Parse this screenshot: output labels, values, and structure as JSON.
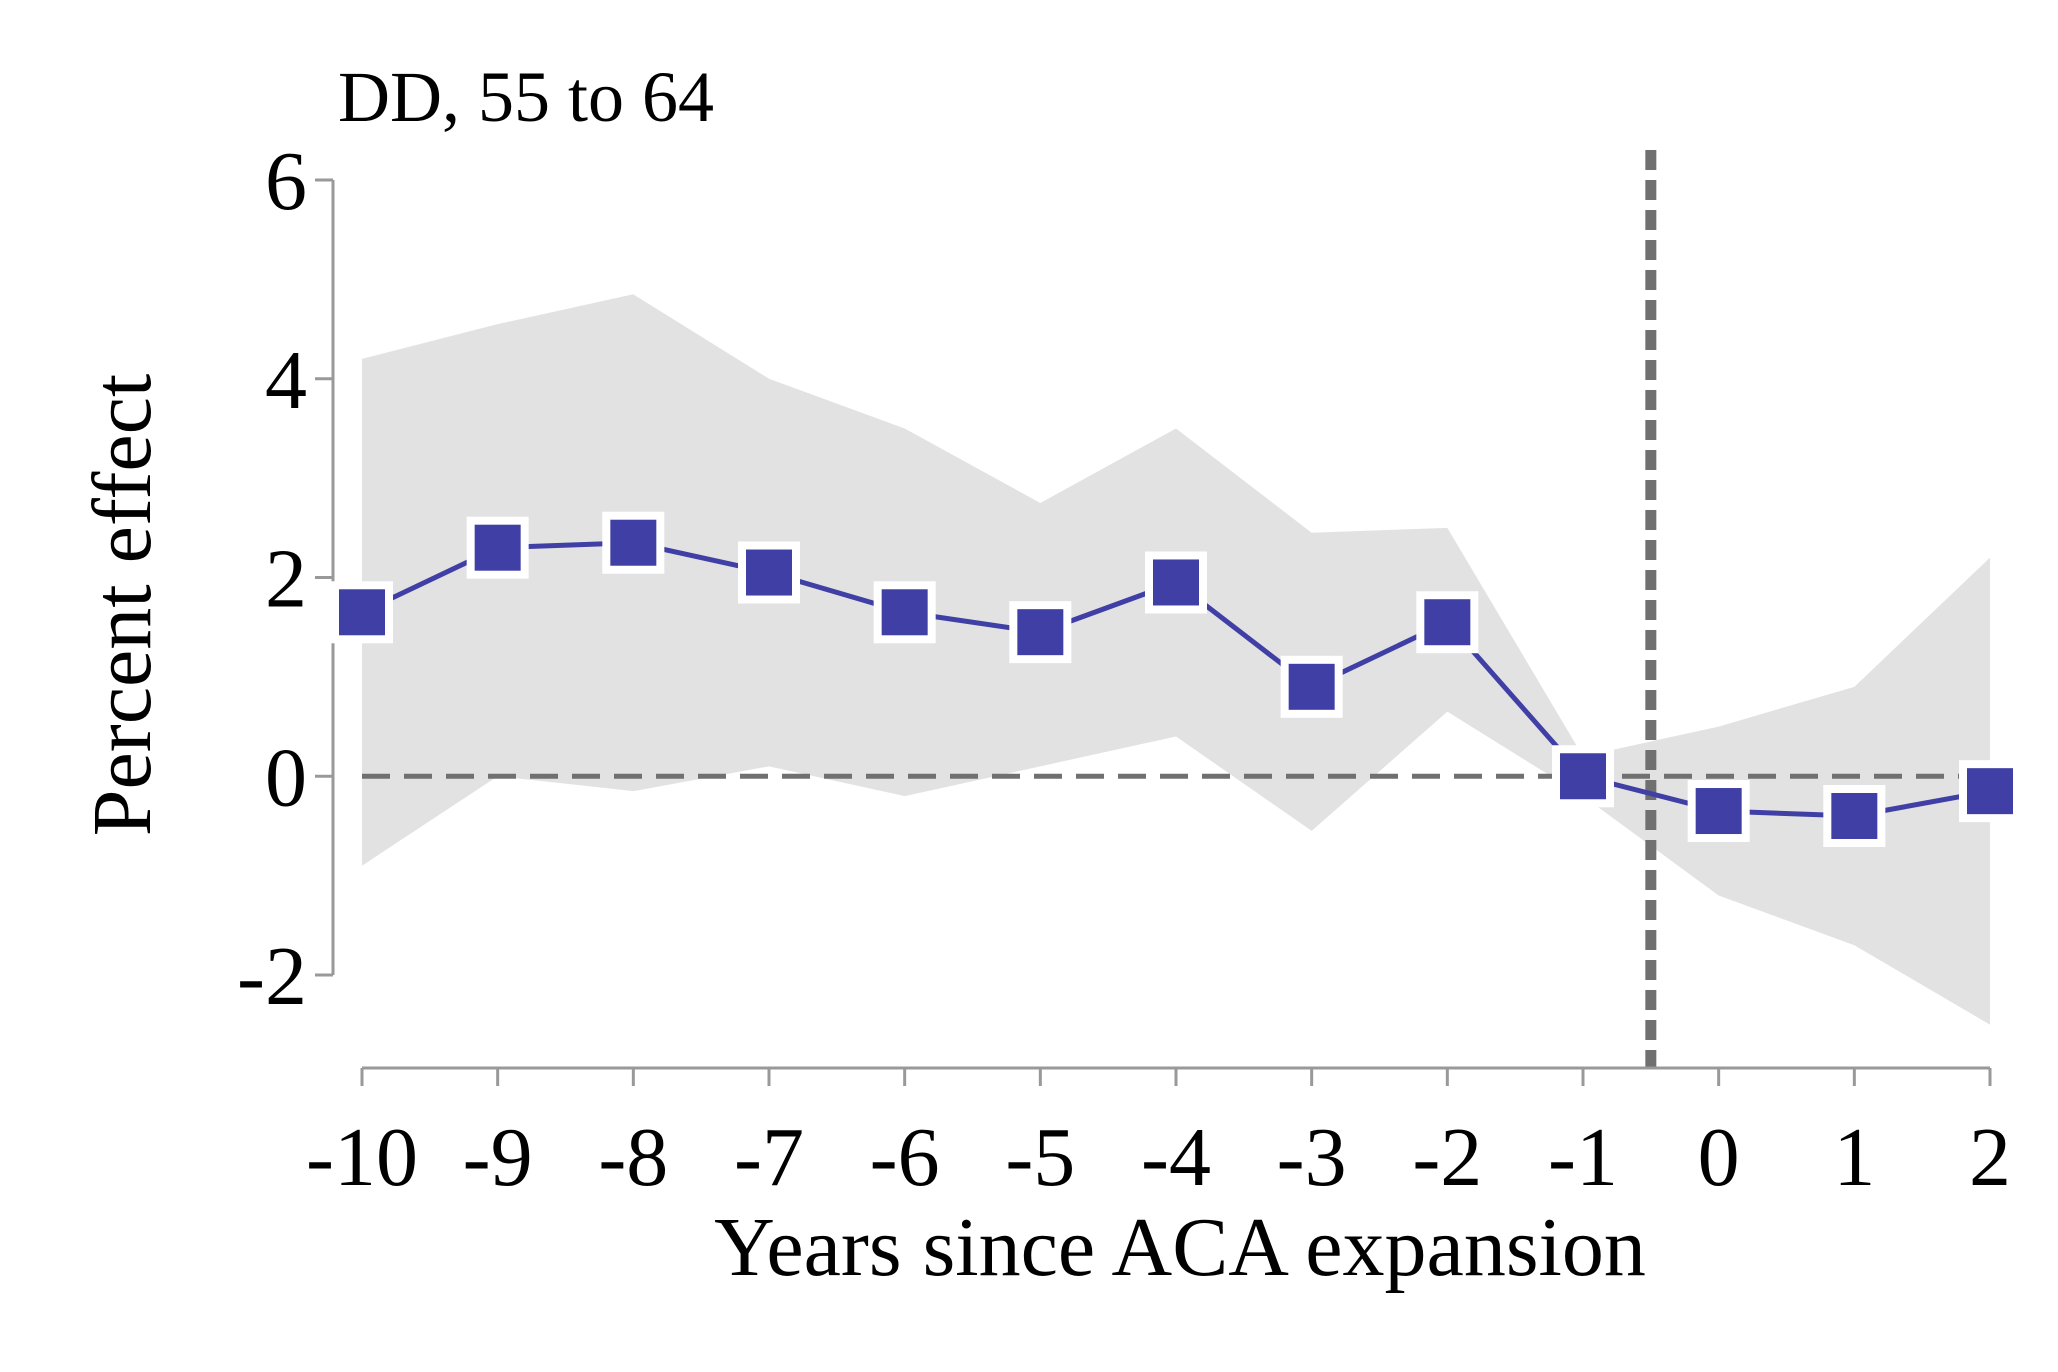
{
  "chart_data": {
    "type": "line",
    "title": "DD, 55 to 64",
    "xlabel": "Years since ACA expansion",
    "ylabel": "Percent effect",
    "x": [
      -10,
      -9,
      -8,
      -7,
      -6,
      -5,
      -4,
      -3,
      -2,
      -1,
      0,
      1,
      2
    ],
    "xticks": [
      "-10",
      "-9",
      "-8",
      "-7",
      "-6",
      "-5",
      "-4",
      "-3",
      "-2",
      "-1",
      "0",
      "1",
      "2"
    ],
    "yticks": [
      "6",
      "4",
      "2",
      "0",
      "-2"
    ],
    "ytick_values": [
      6,
      4,
      2,
      0,
      -2
    ],
    "xlim": [
      -10,
      2
    ],
    "ylim": [
      -2,
      6
    ],
    "series": [
      {
        "values": [
          1.65,
          2.3,
          2.35,
          2.05,
          1.65,
          1.45,
          1.95,
          0.9,
          1.55,
          0.0,
          -0.35,
          -0.4,
          -0.15
        ],
        "ci_upper": [
          4.2,
          4.55,
          4.85,
          4.0,
          3.5,
          2.75,
          3.5,
          2.45,
          2.5,
          0.2,
          0.5,
          0.9,
          2.2
        ],
        "ci_lower": [
          -0.9,
          0.0,
          -0.15,
          0.1,
          -0.2,
          0.1,
          0.4,
          -0.55,
          0.65,
          -0.2,
          -1.2,
          -1.7,
          -2.5
        ]
      }
    ],
    "reference_lines": {
      "horizontal_y": 0,
      "vertical_x": -0.5
    },
    "grid": false,
    "legend": "none",
    "colors": {
      "series": "#3f3fa5",
      "ci_band": "#e2e2e2",
      "reference": "#707070",
      "axis": "#999999"
    }
  }
}
